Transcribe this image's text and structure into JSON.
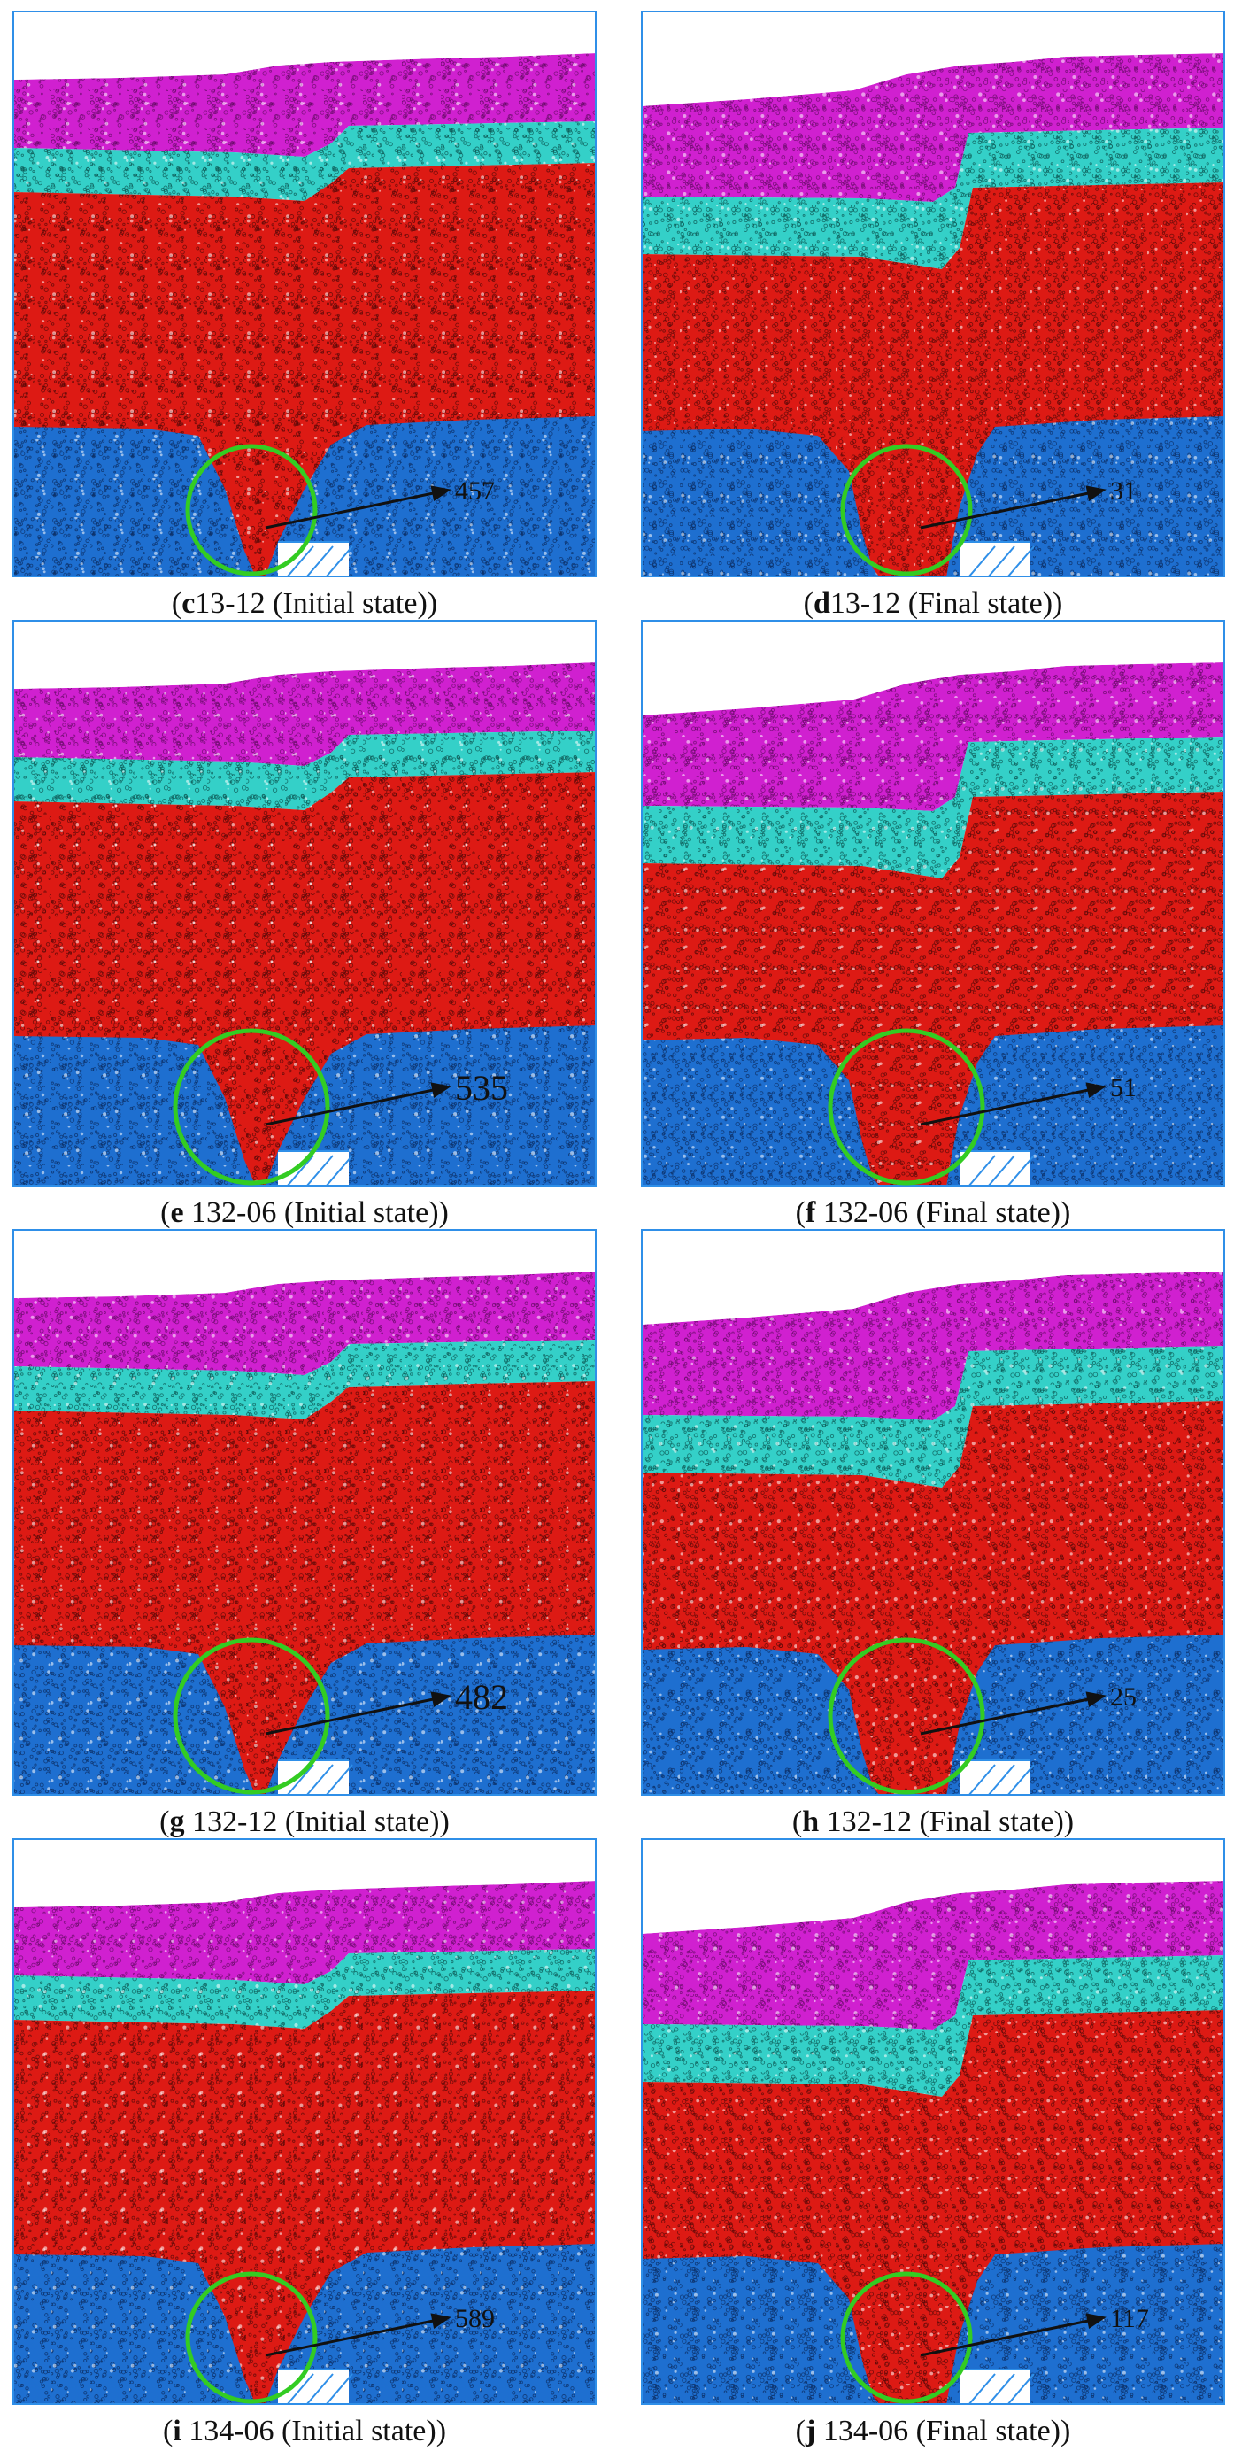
{
  "colors": {
    "top_layer": "#d020d0",
    "second_layer": "#34d0c8",
    "third_layer": "#dd1a14",
    "bottom_layer": "#1e6fd0",
    "circle": "#33cc22",
    "frame": "#2f8fe8"
  },
  "panels": [
    {
      "letter": "c",
      "title": "13-12 (Initial state)",
      "count": "457",
      "state": "initial"
    },
    {
      "letter": "d",
      "title": "13-12 (Final state)",
      "count": "31",
      "state": "final"
    },
    {
      "letter": "e",
      "title": " 132-06 (Initial state)",
      "count": "535",
      "state": "initial"
    },
    {
      "letter": "f",
      "title": " 132-06 (Final state)",
      "count": "51",
      "state": "final"
    },
    {
      "letter": "g",
      "title": " 132-12 (Initial state)",
      "count": "482",
      "state": "initial"
    },
    {
      "letter": "h",
      "title": " 132-12 (Final state)",
      "count": "25",
      "state": "final"
    },
    {
      "letter": "i",
      "title": " 134-06 (Initial state)",
      "count": "589",
      "state": "initial"
    },
    {
      "letter": "j",
      "title": " 134-06 (Final state)",
      "count": "117",
      "state": "final"
    }
  ]
}
